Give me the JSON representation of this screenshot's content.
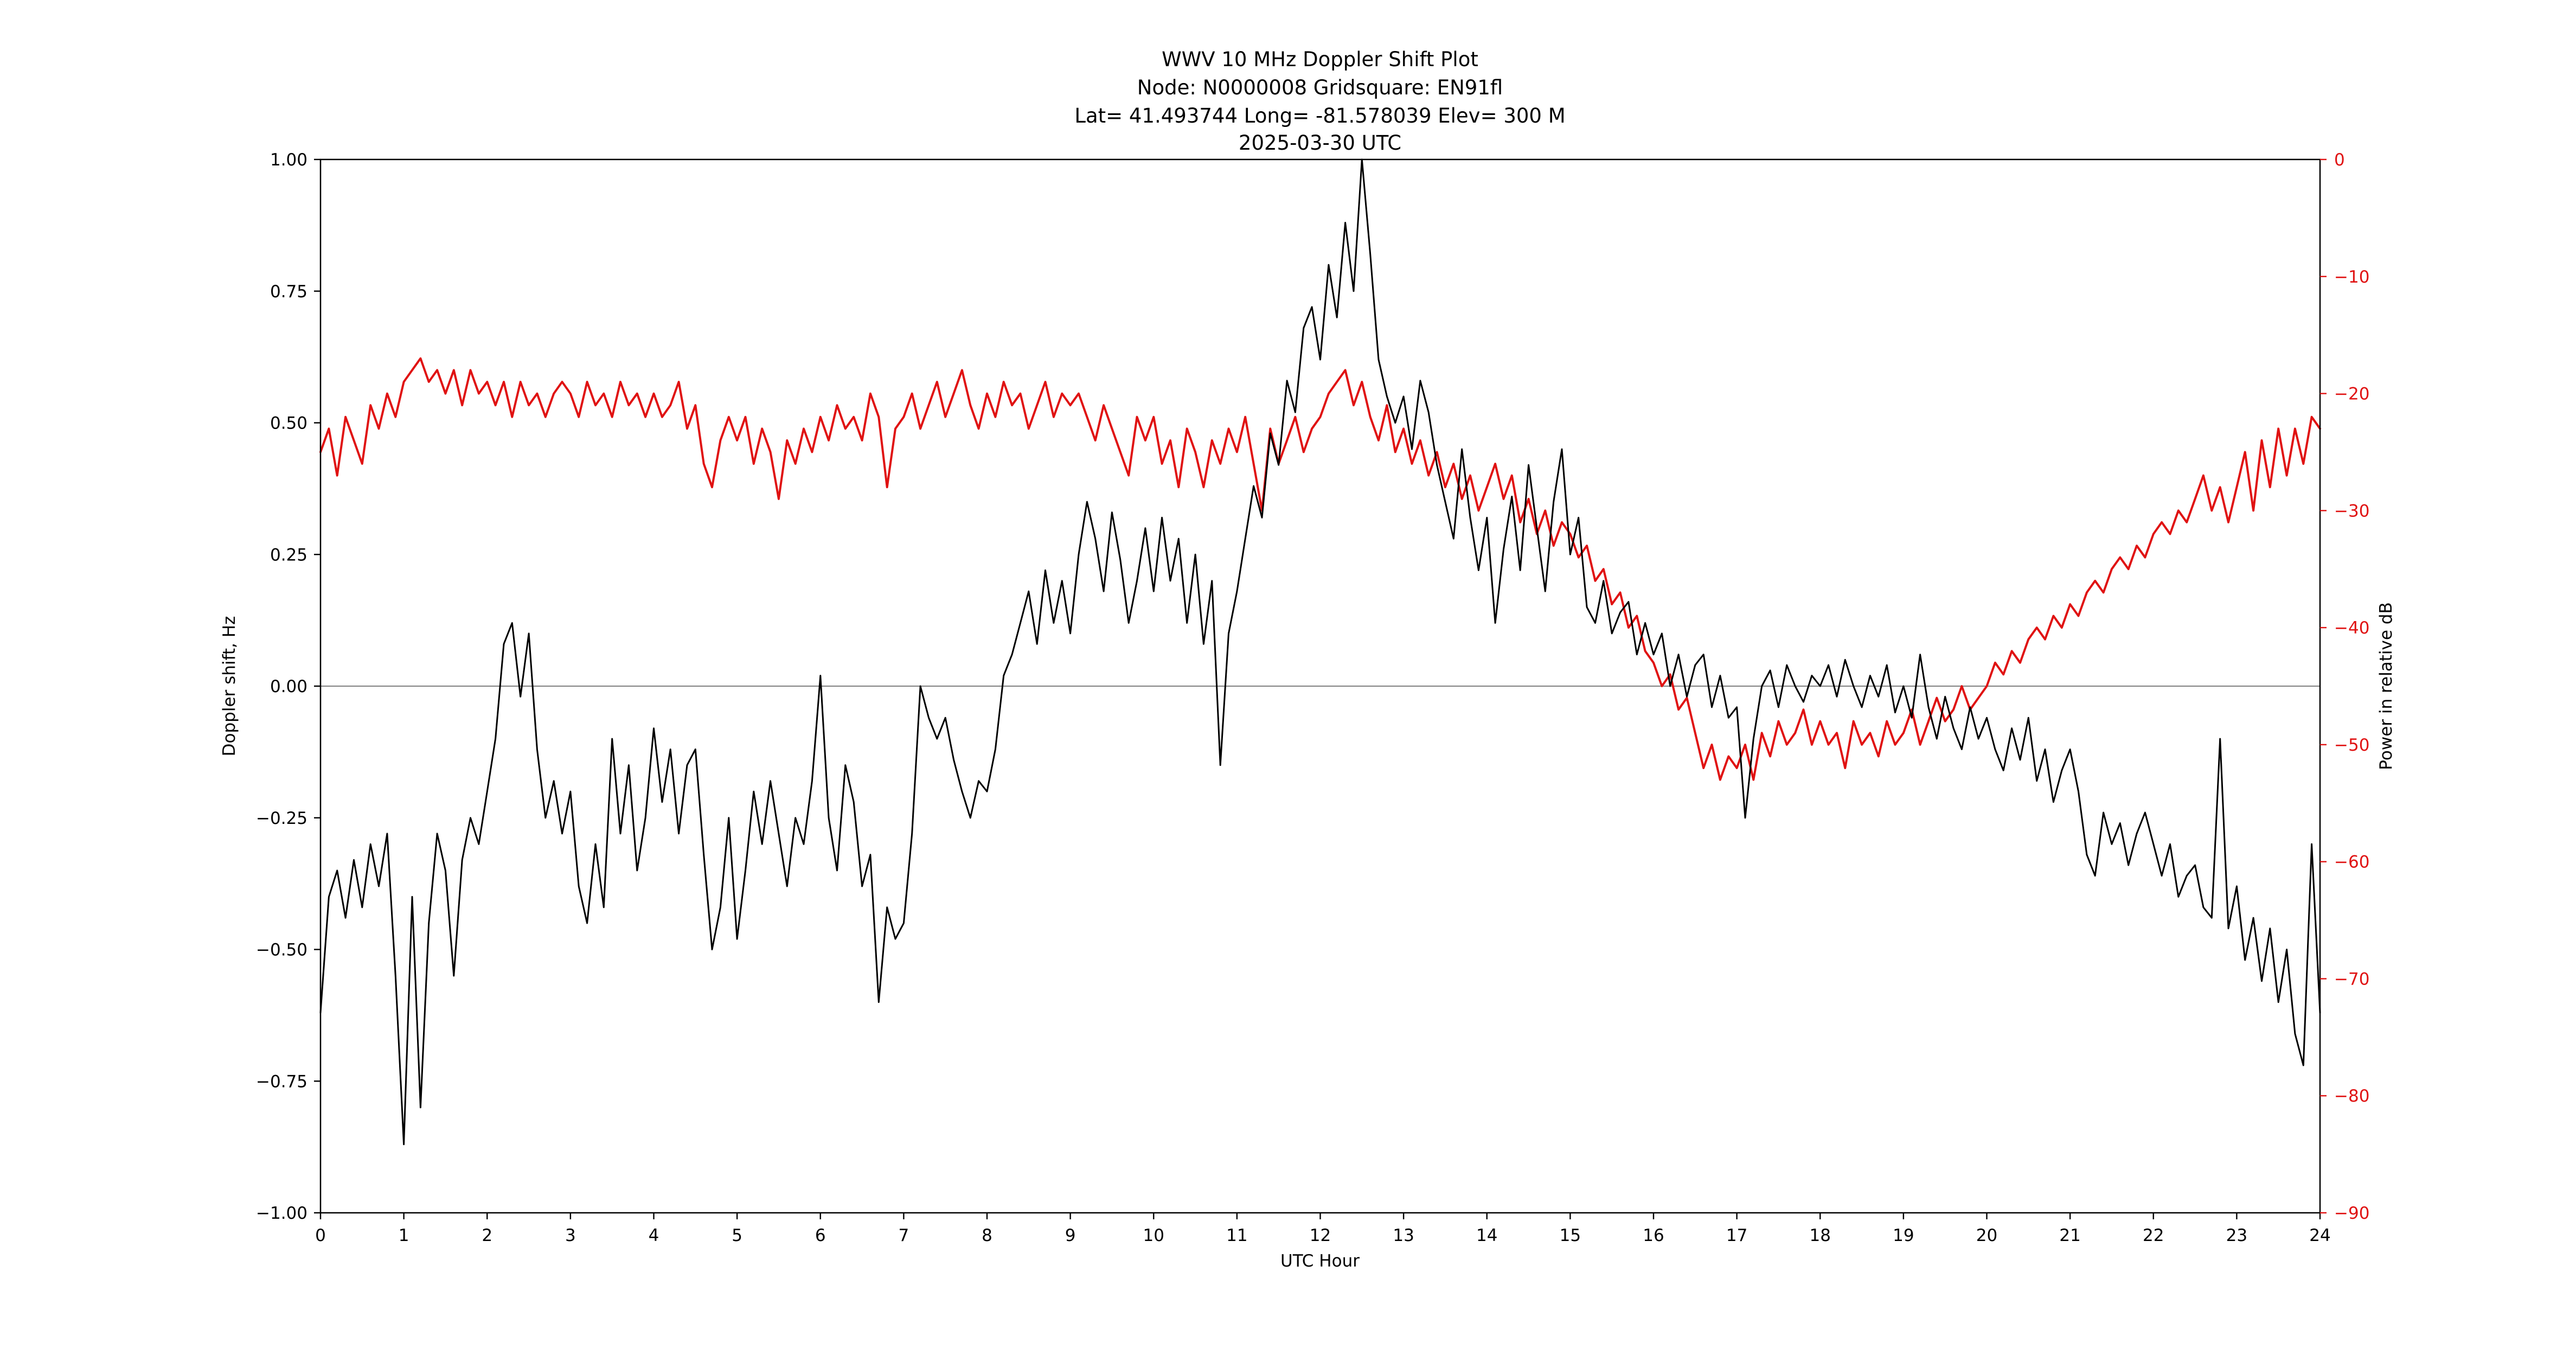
{
  "title": {
    "line1": "WWV 10 MHz Doppler Shift Plot",
    "line2": "Node:  N0000008     Gridsquare:  EN91fl",
    "line3": "Lat= 41.493744    Long=  -81.578039    Elev=  300 M",
    "line4": "2025-03-30  UTC"
  },
  "chart_data": {
    "type": "line",
    "title": "WWV 10 MHz Doppler Shift Plot",
    "xlabel": "UTC Hour",
    "ylabel_left": "Doppler shift, Hz",
    "ylabel_right": "Power in relative dB",
    "xlim": [
      0,
      24
    ],
    "ylim_left": [
      -1.0,
      1.0
    ],
    "ylim_right": [
      -90,
      0
    ],
    "grid": false,
    "zero_line": true,
    "legend": "none",
    "x_ticks": [
      0,
      1,
      2,
      3,
      4,
      5,
      6,
      7,
      8,
      9,
      10,
      11,
      12,
      13,
      14,
      15,
      16,
      17,
      18,
      19,
      20,
      21,
      22,
      23,
      24
    ],
    "x_tick_labels": [
      "0",
      "1",
      "2",
      "3",
      "4",
      "5",
      "6",
      "7",
      "8",
      "9",
      "10",
      "11",
      "12",
      "13",
      "14",
      "15",
      "16",
      "17",
      "18",
      "19",
      "20",
      "21",
      "22",
      "23",
      "24"
    ],
    "y_ticks_left": [
      1.0,
      0.75,
      0.5,
      0.25,
      0.0,
      -0.25,
      -0.5,
      -0.75,
      -1.0
    ],
    "y_tick_labels_left": [
      "1.00",
      "0.75",
      "0.50",
      "0.25",
      "0.00",
      "−0.25",
      "−0.50",
      "−0.75",
      "−1.00"
    ],
    "y_ticks_right": [
      0,
      -10,
      -20,
      -30,
      -40,
      -50,
      -60,
      -70,
      -80,
      -90
    ],
    "y_tick_labels_right": [
      "0",
      "−10",
      "−20",
      "−30",
      "−40",
      "−50",
      "−60",
      "−70",
      "−80",
      "−90"
    ],
    "colors": {
      "doppler": "#000000",
      "power": "#e01212",
      "zero_line": "#808080",
      "axis": "#000000"
    },
    "x_step": 0.1,
    "series": [
      {
        "name": "Power in relative dB",
        "data_name": "power-series-line",
        "axis": "right",
        "color": "#e01212",
        "width": 4,
        "values": [
          -25,
          -23,
          -27,
          -22,
          -24,
          -26,
          -21,
          -23,
          -20,
          -22,
          -19,
          -18,
          -17,
          -19,
          -18,
          -20,
          -18,
          -21,
          -18,
          -20,
          -19,
          -21,
          -19,
          -22,
          -19,
          -21,
          -20,
          -22,
          -20,
          -19,
          -20,
          -22,
          -19,
          -21,
          -20,
          -22,
          -19,
          -21,
          -20,
          -22,
          -20,
          -22,
          -21,
          -19,
          -23,
          -21,
          -26,
          -28,
          -24,
          -22,
          -24,
          -22,
          -26,
          -23,
          -25,
          -29,
          -24,
          -26,
          -23,
          -25,
          -22,
          -24,
          -21,
          -23,
          -22,
          -24,
          -20,
          -22,
          -28,
          -23,
          -22,
          -20,
          -23,
          -21,
          -19,
          -22,
          -20,
          -18,
          -21,
          -23,
          -20,
          -22,
          -19,
          -21,
          -20,
          -23,
          -21,
          -19,
          -22,
          -20,
          -21,
          -20,
          -22,
          -24,
          -21,
          -23,
          -25,
          -27,
          -22,
          -24,
          -22,
          -26,
          -24,
          -28,
          -23,
          -25,
          -28,
          -24,
          -26,
          -23,
          -25,
          -22,
          -26,
          -30,
          -23,
          -26,
          -24,
          -22,
          -25,
          -23,
          -22,
          -20,
          -19,
          -18,
          -21,
          -19,
          -22,
          -24,
          -21,
          -25,
          -23,
          -26,
          -24,
          -27,
          -25,
          -28,
          -26,
          -29,
          -27,
          -30,
          -28,
          -26,
          -29,
          -27,
          -31,
          -29,
          -32,
          -30,
          -33,
          -31,
          -32,
          -34,
          -33,
          -36,
          -35,
          -38,
          -37,
          -40,
          -39,
          -42,
          -43,
          -45,
          -44,
          -47,
          -46,
          -49,
          -52,
          -50,
          -53,
          -51,
          -52,
          -50,
          -53,
          -49,
          -51,
          -48,
          -50,
          -49,
          -47,
          -50,
          -48,
          -50,
          -49,
          -52,
          -48,
          -50,
          -49,
          -51,
          -48,
          -50,
          -49,
          -47,
          -50,
          -48,
          -46,
          -48,
          -47,
          -45,
          -47,
          -46,
          -45,
          -43,
          -44,
          -42,
          -43,
          -41,
          -40,
          -41,
          -39,
          -40,
          -38,
          -39,
          -37,
          -36,
          -37,
          -35,
          -34,
          -35,
          -33,
          -34,
          -32,
          -31,
          -32,
          -30,
          -31,
          -29,
          -27,
          -30,
          -28,
          -31,
          -28,
          -25,
          -30,
          -24,
          -28,
          -23,
          -27,
          -23,
          -26,
          -22,
          -23
        ]
      },
      {
        "name": "Doppler shift, Hz",
        "data_name": "doppler-series-line",
        "axis": "left",
        "color": "#000000",
        "width": 3,
        "values": [
          -0.62,
          -0.4,
          -0.35,
          -0.44,
          -0.33,
          -0.42,
          -0.3,
          -0.38,
          -0.28,
          -0.55,
          -0.87,
          -0.4,
          -0.8,
          -0.45,
          -0.28,
          -0.35,
          -0.55,
          -0.33,
          -0.25,
          -0.3,
          -0.2,
          -0.1,
          0.08,
          0.12,
          -0.02,
          0.1,
          -0.12,
          -0.25,
          -0.18,
          -0.28,
          -0.2,
          -0.38,
          -0.45,
          -0.3,
          -0.42,
          -0.1,
          -0.28,
          -0.15,
          -0.35,
          -0.25,
          -0.08,
          -0.22,
          -0.12,
          -0.28,
          -0.15,
          -0.12,
          -0.32,
          -0.5,
          -0.42,
          -0.25,
          -0.48,
          -0.35,
          -0.2,
          -0.3,
          -0.18,
          -0.28,
          -0.38,
          -0.25,
          -0.3,
          -0.18,
          0.02,
          -0.25,
          -0.35,
          -0.15,
          -0.22,
          -0.38,
          -0.32,
          -0.6,
          -0.42,
          -0.48,
          -0.45,
          -0.28,
          0.0,
          -0.06,
          -0.1,
          -0.06,
          -0.14,
          -0.2,
          -0.25,
          -0.18,
          -0.2,
          -0.12,
          0.02,
          0.06,
          0.12,
          0.18,
          0.08,
          0.22,
          0.12,
          0.2,
          0.1,
          0.25,
          0.35,
          0.28,
          0.18,
          0.33,
          0.24,
          0.12,
          0.2,
          0.3,
          0.18,
          0.32,
          0.2,
          0.28,
          0.12,
          0.25,
          0.08,
          0.2,
          -0.15,
          0.1,
          0.18,
          0.28,
          0.38,
          0.32,
          0.48,
          0.42,
          0.58,
          0.52,
          0.68,
          0.72,
          0.62,
          0.8,
          0.7,
          0.88,
          0.75,
          1.0,
          0.82,
          0.62,
          0.55,
          0.5,
          0.55,
          0.45,
          0.58,
          0.52,
          0.42,
          0.35,
          0.28,
          0.45,
          0.32,
          0.22,
          0.32,
          0.12,
          0.26,
          0.36,
          0.22,
          0.42,
          0.3,
          0.18,
          0.35,
          0.45,
          0.25,
          0.32,
          0.15,
          0.12,
          0.2,
          0.1,
          0.14,
          0.16,
          0.06,
          0.12,
          0.06,
          0.1,
          0.0,
          0.06,
          -0.02,
          0.04,
          0.06,
          -0.04,
          0.02,
          -0.06,
          -0.04,
          -0.25,
          -0.1,
          0.0,
          0.03,
          -0.04,
          0.04,
          0.0,
          -0.03,
          0.02,
          0.0,
          0.04,
          -0.02,
          0.05,
          0.0,
          -0.04,
          0.02,
          -0.02,
          0.04,
          -0.05,
          0.0,
          -0.06,
          0.06,
          -0.04,
          -0.1,
          -0.02,
          -0.08,
          -0.12,
          -0.04,
          -0.1,
          -0.06,
          -0.12,
          -0.16,
          -0.08,
          -0.14,
          -0.06,
          -0.18,
          -0.12,
          -0.22,
          -0.16,
          -0.12,
          -0.2,
          -0.32,
          -0.36,
          -0.24,
          -0.3,
          -0.26,
          -0.34,
          -0.28,
          -0.24,
          -0.3,
          -0.36,
          -0.3,
          -0.4,
          -0.36,
          -0.34,
          -0.42,
          -0.44,
          -0.1,
          -0.46,
          -0.38,
          -0.52,
          -0.44,
          -0.56,
          -0.46,
          -0.6,
          -0.5,
          -0.66,
          -0.72,
          -0.3,
          -0.62
        ]
      }
    ]
  }
}
